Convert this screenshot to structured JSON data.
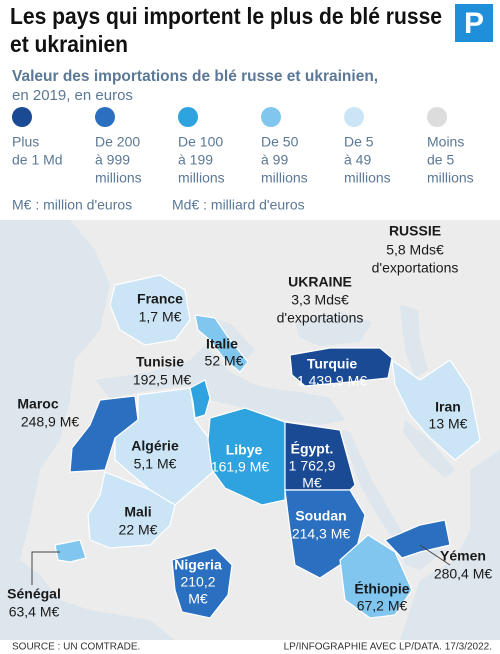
{
  "header": {
    "title_lines": [
      "Les pays qui importent le plus de blé russe",
      "et ukrainien"
    ],
    "logo": "P",
    "subtitle_lines": [
      "Valeur des importations de blé russe et ukrainien,",
      "en 2019, en euros"
    ]
  },
  "legend": [
    {
      "lines": [
        "Plus",
        "de 1 Md"
      ],
      "color": "#1a4a94"
    },
    {
      "lines": [
        "De 200",
        "à 999",
        "millions"
      ],
      "color": "#2a6fc0"
    },
    {
      "lines": [
        "De 100",
        "à 199",
        "millions"
      ],
      "color": "#2ea3e0"
    },
    {
      "lines": [
        "De 50",
        "à 99",
        "millions"
      ],
      "color": "#80c6ee"
    },
    {
      "lines": [
        "De 5",
        "à 49",
        "millions"
      ],
      "color": "#cbe5f6"
    },
    {
      "lines": [
        "Moins",
        "de 5",
        "millions"
      ],
      "color": "#dcdcdc"
    }
  ],
  "notes": [
    "M€ : million d'euros",
    "Md€ : milliard d'euros"
  ],
  "map": {
    "exporters": [
      {
        "lines": [
          "RUSSIE",
          "5,8 Mds€",
          "d'exportations"
        ]
      },
      {
        "lines": [
          "UKRAINE",
          "3,3 Mds€",
          "d'exportations"
        ]
      }
    ],
    "countries": [
      {
        "lines": [
          "France",
          "1,7 M€"
        ],
        "color": "#cbe5f6"
      },
      {
        "lines": [
          "Italie",
          "52 M€"
        ],
        "color": "#80c6ee"
      },
      {
        "lines": [
          "Tunisie",
          "192,5 M€"
        ],
        "color": "#2ea3e0"
      },
      {
        "lines": [
          "Maroc",
          "248,9 M€"
        ],
        "color": "#2a6fc0"
      },
      {
        "lines": [
          "Algérie",
          "5,1 M€"
        ],
        "color": "#cbe5f6"
      },
      {
        "lines": [
          "Libye",
          "161,9 M€"
        ],
        "color": "#2ea3e0"
      },
      {
        "lines": [
          "Égypt.",
          "1 762,9",
          "M€"
        ],
        "color": "#1a4a94"
      },
      {
        "lines": [
          "Turquie",
          "1 439,9 M€"
        ],
        "color": "#1a4a94"
      },
      {
        "lines": [
          "Iran",
          "13 M€"
        ],
        "color": "#cbe5f6"
      },
      {
        "lines": [
          "Mali",
          "22 M€"
        ],
        "color": "#cbe5f6"
      },
      {
        "lines": [
          "Soudan",
          "214,3 M€"
        ],
        "color": "#2a6fc0"
      },
      {
        "lines": [
          "Nigeria",
          "210,2",
          "M€"
        ],
        "color": "#2a6fc0"
      },
      {
        "lines": [
          "Yémen",
          "280,4 M€"
        ],
        "color": "#2a6fc0"
      },
      {
        "lines": [
          "Sénégal",
          "63,4 M€"
        ],
        "color": "#80c6ee"
      },
      {
        "lines": [
          "Éthiopie",
          "67,2 M€"
        ],
        "color": "#80c6ee"
      }
    ]
  },
  "footer": {
    "source": "SOURCE : UN COMTRADE.",
    "credit": "LP/INFOGRAPHIE AVEC LP/DATA. 17/3/2022."
  }
}
